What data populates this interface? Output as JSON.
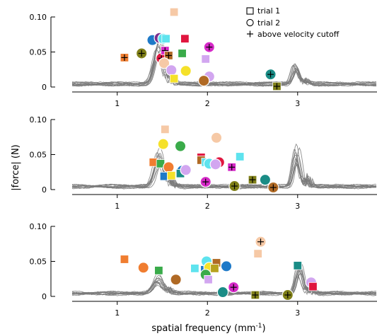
{
  "chart_data": {
    "type": "line+scatter",
    "xlabel": "spatial frequency (mm",
    "xlabel_sup": "-1",
    "xlabel_end": ")",
    "ylabel": "|force| (N)",
    "xlim": [
      0.5,
      3.88
    ],
    "ylim": [
      0,
      0.1
    ],
    "xticks": [
      "1",
      "2",
      "3"
    ],
    "yticks": [
      "0",
      "0.05",
      "0.10"
    ],
    "grid": false,
    "legend_position": "top-right",
    "legend": [
      {
        "marker": "square",
        "label": "trial 1"
      },
      {
        "marker": "circle",
        "label": "trial 2"
      },
      {
        "marker": "plus",
        "label": "above velocity cutoff"
      }
    ],
    "line_color": "#7a7a7a",
    "colors": {
      "blue": "#1f7ac8",
      "magenta": "#d629c8",
      "purple": "#7b2d8e",
      "cyan": "#5ee3ee",
      "lavender": "#d2a6f0",
      "red": "#e0163f",
      "gold": "#b8a21e",
      "yellow": "#f5e12a",
      "orange": "#f07d30",
      "peach": "#f6c9a6",
      "green": "#3aab4a",
      "brown": "#b06a25",
      "olive": "#7f7f18",
      "teal": "#1a8c86"
    },
    "panels": [
      {
        "xticks": [
          1,
          2,
          3
        ],
        "peaks": [
          {
            "center": 1.45,
            "amps": [
              0.055,
              0.048,
              0.062,
              0.04,
              0.052,
              0.045,
              0.066,
              0.035,
              0.058,
              0.05,
              0.043,
              0.06
            ],
            "width": 0.07
          },
          {
            "center": 2.97,
            "amps": [
              0.03,
              0.024,
              0.02,
              0.028,
              0.022,
              0.026,
              0.018,
              0.025,
              0.021,
              0.027,
              0.023,
              0.019
            ],
            "width": 0.05
          }
        ],
        "points": [
          {
            "x": 1.08,
            "y": 0.042,
            "marker": "square",
            "color": "orange",
            "cut": true
          },
          {
            "x": 1.27,
            "y": 0.048,
            "marker": "circle",
            "color": "olive",
            "cut": true
          },
          {
            "x": 1.39,
            "y": 0.067,
            "marker": "circle",
            "color": "blue",
            "cut": false
          },
          {
            "x": 1.47,
            "y": 0.07,
            "marker": "circle",
            "color": "purple",
            "cut": false
          },
          {
            "x": 1.51,
            "y": 0.069,
            "marker": "circle",
            "color": "cyan",
            "cut": false
          },
          {
            "x": 1.49,
            "y": 0.041,
            "marker": "circle",
            "color": "red",
            "cut": true
          },
          {
            "x": 1.54,
            "y": 0.069,
            "marker": "square",
            "color": "cyan",
            "cut": false
          },
          {
            "x": 1.53,
            "y": 0.052,
            "marker": "square",
            "color": "magenta",
            "cut": true
          },
          {
            "x": 1.57,
            "y": 0.045,
            "marker": "square",
            "color": "brown",
            "cut": true
          },
          {
            "x": 1.52,
            "y": 0.034,
            "marker": "circle",
            "color": "peach",
            "cut": false
          },
          {
            "x": 1.6,
            "y": 0.024,
            "marker": "circle",
            "color": "lavender",
            "cut": false
          },
          {
            "x": 1.63,
            "y": 0.107,
            "marker": "square",
            "color": "peach",
            "cut": false
          },
          {
            "x": 1.63,
            "y": 0.012,
            "marker": "square",
            "color": "yellow",
            "cut": false
          },
          {
            "x": 1.72,
            "y": 0.048,
            "marker": "square",
            "color": "green",
            "cut": false
          },
          {
            "x": 1.75,
            "y": 0.069,
            "marker": "square",
            "color": "red",
            "cut": false
          },
          {
            "x": 1.76,
            "y": 0.023,
            "marker": "circle",
            "color": "yellow",
            "cut": false
          },
          {
            "x": 1.98,
            "y": 0.04,
            "marker": "square",
            "color": "lavender",
            "cut": false
          },
          {
            "x": 2.02,
            "y": 0.057,
            "marker": "circle",
            "color": "magenta",
            "cut": true
          },
          {
            "x": 2.02,
            "y": 0.015,
            "marker": "circle",
            "color": "lavender",
            "cut": false
          },
          {
            "x": 1.96,
            "y": 0.009,
            "marker": "circle",
            "color": "brown",
            "cut": false
          },
          {
            "x": 2.7,
            "y": 0.018,
            "marker": "circle",
            "color": "teal",
            "cut": true
          },
          {
            "x": 2.77,
            "y": 0.001,
            "marker": "square",
            "color": "olive",
            "cut": true
          }
        ]
      },
      {
        "xticks": [
          1,
          2,
          3
        ],
        "peaks": [
          {
            "center": 1.47,
            "amps": [
              0.042,
              0.036,
              0.048,
              0.03,
              0.04,
              0.034,
              0.052,
              0.028,
              0.045,
              0.038,
              0.033,
              0.047
            ],
            "width": 0.07
          },
          {
            "center": 2.99,
            "amps": [
              0.06,
              0.045,
              0.04,
              0.052,
              0.035,
              0.048,
              0.03,
              0.042,
              0.038,
              0.055,
              0.033,
              0.044
            ],
            "width": 0.05
          }
        ],
        "points": [
          {
            "x": 1.53,
            "y": 0.086,
            "marker": "square",
            "color": "peach",
            "cut": false
          },
          {
            "x": 1.51,
            "y": 0.065,
            "marker": "circle",
            "color": "yellow",
            "cut": false
          },
          {
            "x": 1.7,
            "y": 0.062,
            "marker": "circle",
            "color": "green",
            "cut": false
          },
          {
            "x": 1.4,
            "y": 0.039,
            "marker": "square",
            "color": "orange",
            "cut": false
          },
          {
            "x": 1.48,
            "y": 0.037,
            "marker": "square",
            "color": "green",
            "cut": false
          },
          {
            "x": 1.57,
            "y": 0.032,
            "marker": "circle",
            "color": "orange",
            "cut": false
          },
          {
            "x": 1.52,
            "y": 0.019,
            "marker": "square",
            "color": "blue",
            "cut": false
          },
          {
            "x": 1.6,
            "y": 0.02,
            "marker": "square",
            "color": "yellow",
            "cut": false
          },
          {
            "x": 1.72,
            "y": 0.027,
            "marker": "circle",
            "color": "blue",
            "cut": false
          },
          {
            "x": 1.7,
            "y": 0.023,
            "marker": "square",
            "color": "teal",
            "cut": false
          },
          {
            "x": 1.76,
            "y": 0.028,
            "marker": "circle",
            "color": "lavender",
            "cut": false
          },
          {
            "x": 1.93,
            "y": 0.046,
            "marker": "square",
            "color": "red",
            "cut": false
          },
          {
            "x": 1.93,
            "y": 0.042,
            "marker": "square",
            "color": "brown",
            "cut": false
          },
          {
            "x": 1.98,
            "y": 0.039,
            "marker": "square",
            "color": "cyan",
            "cut": false
          },
          {
            "x": 2.02,
            "y": 0.037,
            "marker": "circle",
            "color": "cyan",
            "cut": false
          },
          {
            "x": 2.1,
            "y": 0.074,
            "marker": "circle",
            "color": "peach",
            "cut": false
          },
          {
            "x": 2.13,
            "y": 0.039,
            "marker": "circle",
            "color": "red",
            "cut": false
          },
          {
            "x": 2.09,
            "y": 0.036,
            "marker": "circle",
            "color": "lavender",
            "cut": false
          },
          {
            "x": 2.27,
            "y": 0.032,
            "marker": "square",
            "color": "magenta",
            "cut": true
          },
          {
            "x": 2.36,
            "y": 0.047,
            "marker": "square",
            "color": "cyan",
            "cut": false
          },
          {
            "x": 1.98,
            "y": 0.011,
            "marker": "circle",
            "color": "magenta",
            "cut": true
          },
          {
            "x": 2.3,
            "y": 0.005,
            "marker": "circle",
            "color": "olive",
            "cut": true
          },
          {
            "x": 2.5,
            "y": 0.014,
            "marker": "square",
            "color": "olive",
            "cut": true
          },
          {
            "x": 2.64,
            "y": 0.014,
            "marker": "circle",
            "color": "teal",
            "cut": false
          },
          {
            "x": 2.73,
            "y": 0.003,
            "marker": "circle",
            "color": "brown",
            "cut": true
          }
        ]
      },
      {
        "xticks": [
          1,
          2,
          3
        ],
        "peaks": [
          {
            "center": 1.45,
            "amps": [
              0.02,
              0.016,
              0.024,
              0.013,
              0.018,
              0.022,
              0.015,
              0.026,
              0.017,
              0.021,
              0.014,
              0.019
            ],
            "width": 0.07
          },
          {
            "center": 3.02,
            "amps": [
              0.042,
              0.035,
              0.03,
              0.04,
              0.028,
              0.037,
              0.026,
              0.033,
              0.045,
              0.031,
              0.038,
              0.029
            ],
            "width": 0.05
          }
        ],
        "points": [
          {
            "x": 1.08,
            "y": 0.053,
            "marker": "square",
            "color": "orange",
            "cut": false
          },
          {
            "x": 1.29,
            "y": 0.041,
            "marker": "circle",
            "color": "orange",
            "cut": false
          },
          {
            "x": 1.46,
            "y": 0.037,
            "marker": "square",
            "color": "green",
            "cut": false
          },
          {
            "x": 1.65,
            "y": 0.024,
            "marker": "circle",
            "color": "brown",
            "cut": false
          },
          {
            "x": 1.86,
            "y": 0.04,
            "marker": "square",
            "color": "cyan",
            "cut": false
          },
          {
            "x": 1.97,
            "y": 0.038,
            "marker": "square",
            "color": "blue",
            "cut": false
          },
          {
            "x": 1.99,
            "y": 0.05,
            "marker": "circle",
            "color": "cyan",
            "cut": false
          },
          {
            "x": 2.02,
            "y": 0.041,
            "marker": "circle",
            "color": "yellow",
            "cut": false
          },
          {
            "x": 1.98,
            "y": 0.031,
            "marker": "circle",
            "color": "green",
            "cut": false
          },
          {
            "x": 2.01,
            "y": 0.024,
            "marker": "square",
            "color": "lavender",
            "cut": false
          },
          {
            "x": 2.1,
            "y": 0.048,
            "marker": "square",
            "color": "brown",
            "cut": false
          },
          {
            "x": 2.08,
            "y": 0.04,
            "marker": "square",
            "color": "gold",
            "cut": false
          },
          {
            "x": 2.21,
            "y": 0.043,
            "marker": "circle",
            "color": "blue",
            "cut": false
          },
          {
            "x": 2.17,
            "y": 0.006,
            "marker": "circle",
            "color": "teal",
            "cut": false
          },
          {
            "x": 2.29,
            "y": 0.013,
            "marker": "circle",
            "color": "magenta",
            "cut": true
          },
          {
            "x": 2.53,
            "y": 0.002,
            "marker": "square",
            "color": "olive",
            "cut": true
          },
          {
            "x": 2.56,
            "y": 0.061,
            "marker": "square",
            "color": "peach",
            "cut": false
          },
          {
            "x": 2.59,
            "y": 0.078,
            "marker": "circle",
            "color": "peach",
            "cut": true
          },
          {
            "x": 2.89,
            "y": 0.002,
            "marker": "circle",
            "color": "olive",
            "cut": true
          },
          {
            "x": 3.0,
            "y": 0.044,
            "marker": "square",
            "color": "teal",
            "cut": false
          },
          {
            "x": 3.15,
            "y": 0.02,
            "marker": "circle",
            "color": "lavender",
            "cut": false
          },
          {
            "x": 3.17,
            "y": 0.014,
            "marker": "square",
            "color": "red",
            "cut": false
          }
        ]
      }
    ]
  }
}
